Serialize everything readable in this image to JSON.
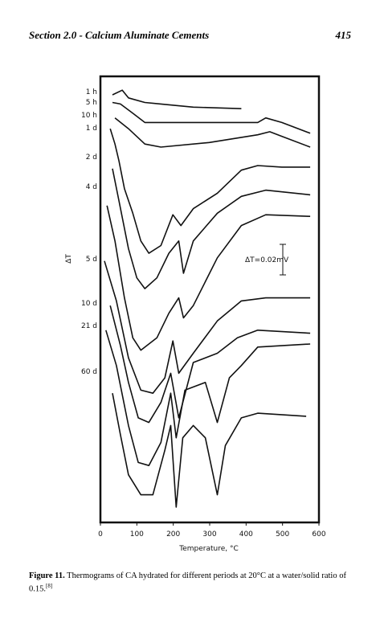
{
  "header": {
    "section": "Section 2.0 - Calcium Aluminate Cements",
    "page_number": "415"
  },
  "chart_data": {
    "type": "line",
    "xlabel": "Temperature, °C",
    "ylabel": "ΔT",
    "annotation": "ΔT=0.02mV",
    "xlim": [
      0,
      600
    ],
    "xticks": [
      0,
      100,
      200,
      300,
      400,
      500,
      600
    ],
    "ylim": [
      0,
      0.29
    ],
    "series": [
      {
        "name": "1 h",
        "color": "#111111",
        "x": [
          33,
          60,
          77,
          122,
          166,
          255,
          387
        ],
        "values": [
          0.278,
          0.281,
          0.276,
          0.273,
          0.272,
          0.27,
          0.269
        ]
      },
      {
        "name": "5 h",
        "color": "#111111",
        "x": [
          33,
          55,
          89,
          122,
          277,
          432,
          454,
          498,
          576
        ],
        "values": [
          0.273,
          0.272,
          0.266,
          0.26,
          0.26,
          0.26,
          0.263,
          0.26,
          0.253
        ]
      },
      {
        "name": "10 h",
        "color": "#111111",
        "x": [
          40,
          77,
          122,
          166,
          299,
          432,
          465,
          498,
          576
        ],
        "values": [
          0.263,
          0.256,
          0.246,
          0.244,
          0.247,
          0.252,
          0.254,
          0.251,
          0.244
        ]
      },
      {
        "name": "1 d",
        "color": "#111111",
        "x": [
          27,
          40,
          51,
          66,
          89,
          111,
          133,
          166,
          199,
          221,
          255,
          321,
          387,
          432,
          498,
          576
        ],
        "values": [
          0.256,
          0.246,
          0.235,
          0.217,
          0.201,
          0.183,
          0.175,
          0.18,
          0.2,
          0.193,
          0.204,
          0.214,
          0.229,
          0.232,
          0.231,
          0.231
        ]
      },
      {
        "name": "2 d",
        "color": "#111111",
        "x": [
          33,
          51,
          77,
          100,
          122,
          155,
          188,
          215,
          228,
          255,
          321,
          387,
          454,
          576
        ],
        "values": [
          0.23,
          0.209,
          0.178,
          0.159,
          0.152,
          0.159,
          0.175,
          0.183,
          0.162,
          0.183,
          0.201,
          0.212,
          0.216,
          0.213
        ]
      },
      {
        "name": "4 d",
        "color": "#111111",
        "x": [
          18,
          40,
          66,
          89,
          111,
          155,
          188,
          215,
          228,
          255,
          321,
          387,
          454,
          576
        ],
        "values": [
          0.206,
          0.183,
          0.146,
          0.12,
          0.112,
          0.12,
          0.136,
          0.146,
          0.133,
          0.141,
          0.172,
          0.193,
          0.2,
          0.199
        ]
      },
      {
        "name": "5 d",
        "color": "#111111",
        "x": [
          11,
          44,
          77,
          111,
          144,
          177,
          199,
          215,
          255,
          321,
          387,
          454,
          576
        ],
        "values": [
          0.17,
          0.144,
          0.107,
          0.086,
          0.084,
          0.094,
          0.118,
          0.097,
          0.11,
          0.131,
          0.144,
          0.146,
          0.146
        ]
      },
      {
        "name": "10 d",
        "color": "#111111",
        "x": [
          27,
          55,
          77,
          104,
          133,
          166,
          193,
          215,
          255,
          321,
          376,
          432,
          576
        ],
        "values": [
          0.141,
          0.115,
          0.091,
          0.068,
          0.065,
          0.078,
          0.097,
          0.068,
          0.104,
          0.11,
          0.12,
          0.125,
          0.123
        ]
      },
      {
        "name": "21 d",
        "color": "#111111",
        "x": [
          15,
          44,
          77,
          104,
          133,
          166,
          193,
          208,
          232,
          288,
          321,
          354,
          387,
          432,
          576
        ],
        "values": [
          0.125,
          0.102,
          0.063,
          0.039,
          0.037,
          0.052,
          0.084,
          0.055,
          0.086,
          0.091,
          0.065,
          0.094,
          0.102,
          0.114,
          0.116
        ]
      },
      {
        "name": "60 d",
        "color": "#111111",
        "x": [
          33,
          55,
          77,
          111,
          144,
          177,
          193,
          208,
          226,
          255,
          288,
          321,
          343,
          387,
          432,
          565
        ],
        "values": [
          0.084,
          0.057,
          0.031,
          0.018,
          0.018,
          0.047,
          0.063,
          0.01,
          0.055,
          0.063,
          0.055,
          0.018,
          0.05,
          0.068,
          0.071,
          0.069
        ]
      }
    ]
  },
  "caption": {
    "label": "Figure 11.",
    "text": "Thermograms of CA hydrated for different periods at 20°C at a water/solid ratio of 0.15.",
    "reference": "[8]"
  }
}
